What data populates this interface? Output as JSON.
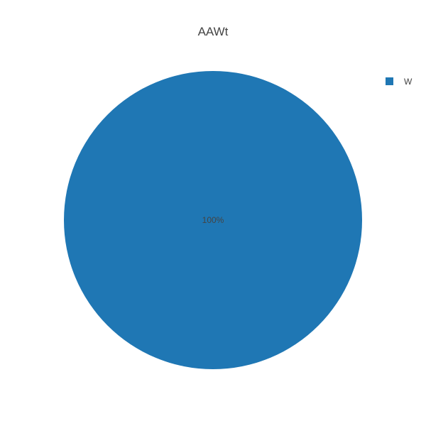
{
  "chart_data": {
    "type": "pie",
    "title": "AAWt",
    "slices": [
      {
        "label": "W",
        "value": 100,
        "percent_label": "100%",
        "color": "#1f77b4"
      }
    ],
    "legend": {
      "placement": "top-right",
      "entries": [
        {
          "label": "W",
          "color": "#1f77b4"
        }
      ]
    },
    "text_color": "#444444"
  }
}
